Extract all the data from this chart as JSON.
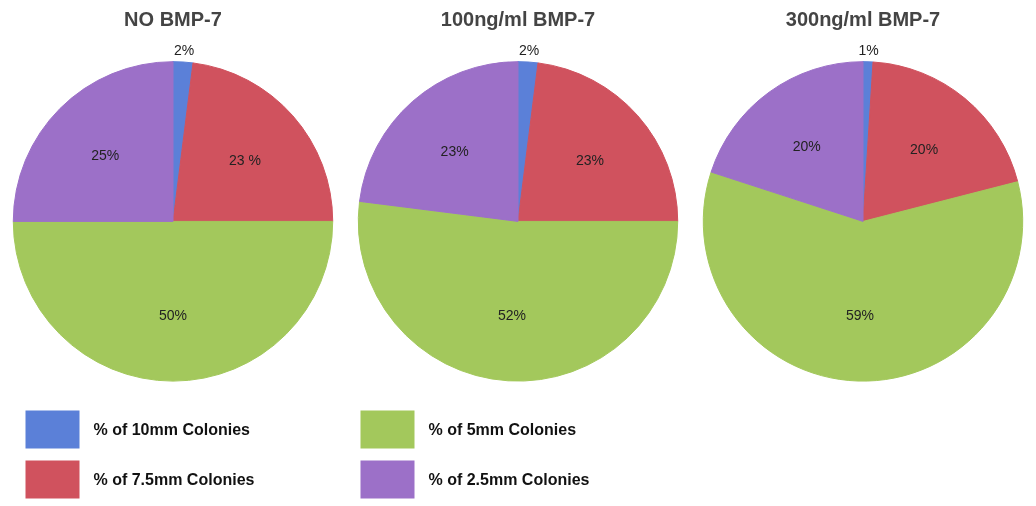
{
  "chart_data": [
    {
      "type": "pie",
      "title": "NO BMP-7",
      "categories": [
        "% of 10mm Colonies",
        "% of 7.5mm Colonies",
        "% of 5mm Colonies",
        "% of 2.5mm Colonies"
      ],
      "values": [
        2,
        23,
        50,
        25
      ],
      "value_labels": [
        "2%",
        "23 %",
        "50%",
        "25%"
      ],
      "colors": [
        "#5b80d8",
        "#d0525e",
        "#a3c85c",
        "#9c70c8"
      ],
      "legend": "bottom"
    },
    {
      "type": "pie",
      "title": "100ng/ml BMP-7",
      "categories": [
        null,
        null,
        null,
        null
      ],
      "values": [
        2,
        23,
        52,
        23
      ],
      "value_labels": [
        "2%",
        "23%",
        "52%",
        "23%"
      ],
      "colors": [
        "#5b80d8",
        "#d0525e",
        "#a3c85c",
        "#9c70c8"
      ]
    },
    {
      "type": "pie",
      "title": "300ng/ml BMP-7",
      "categories": [
        null,
        null,
        null,
        null
      ],
      "values": [
        1,
        20,
        59,
        20
      ],
      "value_labels": [
        "1%",
        "20%",
        "59%",
        "20%"
      ],
      "colors": [
        "#5b80d8",
        "#d0525e",
        "#a3c85c",
        "#9c70c8"
      ]
    }
  ]
}
